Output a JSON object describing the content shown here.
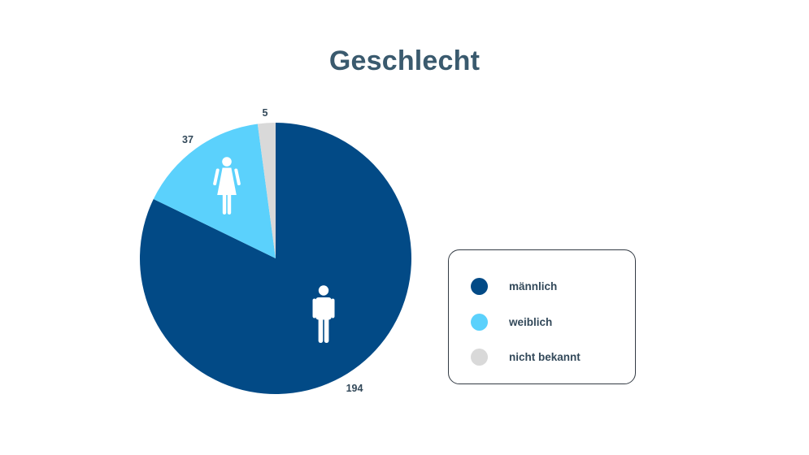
{
  "colors": {
    "title": "#3a5a6e",
    "label": "#33495a",
    "maennlich": "#024a86",
    "weiblich": "#5bd1fc",
    "nicht_bekannt": "#d9d9d9",
    "icon": "#ffffff"
  },
  "chart_data": {
    "type": "pie",
    "title": "Geschlecht",
    "categories": [
      "männlich",
      "weiblich",
      "nicht bekannt"
    ],
    "values": [
      194,
      37,
      5
    ],
    "data_labels": [
      "194",
      "37",
      "5"
    ],
    "slice_icons": [
      "male-person-icon",
      "female-person-icon",
      ""
    ],
    "start": "12 o'clock",
    "direction": "clockwise",
    "legend": {
      "placement": "right",
      "items": [
        {
          "label": "männlich",
          "color": "#024a86"
        },
        {
          "label": "weiblich",
          "color": "#5bd1fc"
        },
        {
          "label": "nicht bekannt",
          "color": "#d9d9d9"
        }
      ]
    }
  }
}
